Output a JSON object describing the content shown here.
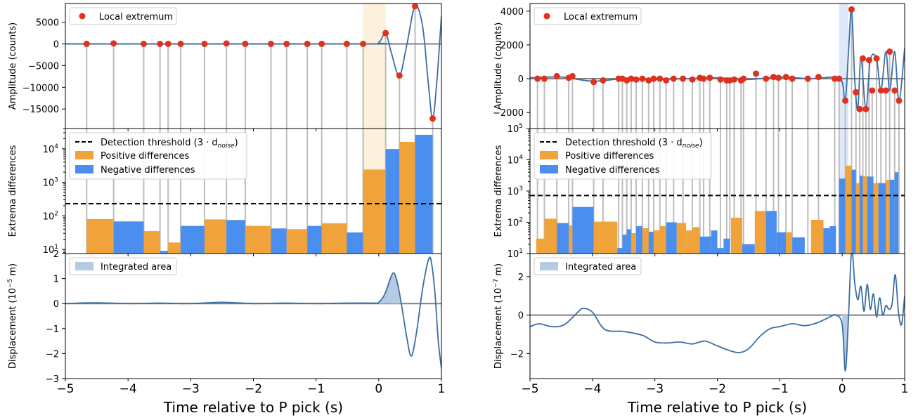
{
  "chart_data": [
    {
      "type": "line",
      "panel": "left-top",
      "ylabel": "Amplitude (counts)",
      "ylim": [
        -19500,
        9300
      ],
      "yticks": [
        "5000",
        "0",
        "−5000",
        "−10000",
        "−15000"
      ],
      "yticks_values": [
        5000,
        0,
        -5000,
        -10000,
        -15000
      ],
      "xlim": [
        -5,
        1
      ],
      "grid": false,
      "legend": {
        "position": "top-left",
        "items": [
          "Local extremum"
        ]
      },
      "highlight_window": [
        -0.25,
        0.11
      ],
      "series": [
        {
          "name": "Local extremum",
          "x": [
            -4.66,
            -4.23,
            -3.75,
            -3.49,
            -3.36,
            -3.16,
            -2.78,
            -2.43,
            -2.13,
            -1.72,
            -1.47,
            -1.14,
            -0.91,
            -0.51,
            -0.25,
            0.11,
            0.33,
            0.58,
            0.86
          ],
          "y": [
            0,
            100,
            0,
            0,
            0,
            0,
            0,
            100,
            0,
            0,
            0,
            0,
            0,
            0,
            0,
            2500,
            -7300,
            8700,
            -17200
          ]
        }
      ],
      "trace": {
        "x": [
          -5,
          -0.2,
          0.0,
          0.11,
          0.2,
          0.33,
          0.45,
          0.58,
          0.7,
          0.79,
          0.86,
          0.93,
          1.0
        ],
        "y": [
          0,
          0,
          300,
          2500,
          -2000,
          -7300,
          0,
          8700,
          4000,
          -9000,
          -17200,
          -8000,
          6500
        ]
      }
    },
    {
      "type": "bar",
      "panel": "left-middle",
      "ylabel": "Extrema differences",
      "scale": "log",
      "ylim": [
        7.5,
        40000
      ],
      "yticks": [
        "10",
        "10",
        "10",
        "10"
      ],
      "yticks_exponents": [
        "1",
        "2",
        "3",
        "4"
      ],
      "yticks_values": [
        10,
        100,
        1000,
        10000
      ],
      "threshold": 230,
      "legend": {
        "position": "top-left",
        "items": [
          "Detection threshold (3 · d",
          "noise",
          ")",
          "Positive differences",
          "Negative differences"
        ]
      },
      "bars": [
        {
          "x0": -4.66,
          "x1": -4.23,
          "value": 80,
          "sign": "positive"
        },
        {
          "x0": -4.23,
          "x1": -3.75,
          "value": 68,
          "sign": "negative"
        },
        {
          "x0": -3.75,
          "x1": -3.49,
          "value": 35,
          "sign": "positive"
        },
        {
          "x0": -3.49,
          "x1": -3.36,
          "value": 9,
          "sign": "negative"
        },
        {
          "x0": -3.36,
          "x1": -3.16,
          "value": 16,
          "sign": "positive"
        },
        {
          "x0": -3.16,
          "x1": -2.78,
          "value": 50,
          "sign": "negative"
        },
        {
          "x0": -2.78,
          "x1": -2.43,
          "value": 78,
          "sign": "positive"
        },
        {
          "x0": -2.43,
          "x1": -2.13,
          "value": 75,
          "sign": "negative"
        },
        {
          "x0": -2.13,
          "x1": -1.72,
          "value": 50,
          "sign": "positive"
        },
        {
          "x0": -1.72,
          "x1": -1.47,
          "value": 42,
          "sign": "negative"
        },
        {
          "x0": -1.47,
          "x1": -1.14,
          "value": 40,
          "sign": "positive"
        },
        {
          "x0": -1.14,
          "x1": -0.91,
          "value": 50,
          "sign": "negative"
        },
        {
          "x0": -0.91,
          "x1": -0.51,
          "value": 60,
          "sign": "positive"
        },
        {
          "x0": -0.51,
          "x1": -0.25,
          "value": 32,
          "sign": "negative"
        },
        {
          "x0": -0.25,
          "x1": 0.11,
          "value": 2400,
          "sign": "positive"
        },
        {
          "x0": 0.11,
          "x1": 0.33,
          "value": 9800,
          "sign": "negative"
        },
        {
          "x0": 0.33,
          "x1": 0.58,
          "value": 16000,
          "sign": "positive"
        },
        {
          "x0": 0.58,
          "x1": 0.86,
          "value": 26000,
          "sign": "negative"
        }
      ]
    },
    {
      "type": "area",
      "panel": "left-bottom",
      "ylabel": "Displacement (10",
      "ylabel_exp": "−5",
      "ylabel_unit": " m)",
      "ylim": [
        -3,
        2
      ],
      "yticks": [
        "2",
        "1",
        "0",
        "−1",
        "−2",
        "−3"
      ],
      "yticks_values": [
        2,
        1,
        0,
        -1,
        -2,
        -3
      ],
      "xlim": [
        -5,
        1
      ],
      "xticks": [
        "−5",
        "−4",
        "−3",
        "−2",
        "−1",
        "0",
        "1"
      ],
      "xticks_values": [
        -5,
        -4,
        -3,
        -2,
        -1,
        0,
        1
      ],
      "xlabel": "Time relative to P pick (s)",
      "legend": {
        "position": "top-left",
        "items": [
          "Integrated area"
        ]
      },
      "area_window": [
        0.0,
        0.36
      ],
      "x": [
        -5,
        -4.5,
        -4,
        -3.5,
        -3,
        -2.5,
        -2,
        -1.5,
        -1,
        -0.5,
        -0.1,
        0.0,
        0.1,
        0.2,
        0.25,
        0.3,
        0.36,
        0.45,
        0.52,
        0.6,
        0.7,
        0.8,
        0.85,
        0.9,
        0.95,
        1.0
      ],
      "y": [
        0.0,
        0.03,
        0.0,
        0.02,
        0.0,
        0.05,
        0.0,
        0.02,
        0.0,
        0.02,
        0.02,
        0.05,
        0.4,
        1.1,
        1.2,
        0.8,
        0.0,
        -1.4,
        -2.1,
        -1.2,
        0.6,
        1.8,
        1.5,
        0.3,
        -1.5,
        -2.6
      ]
    },
    {
      "type": "line",
      "panel": "right-top",
      "ylabel": "Amplitude (counts)",
      "ylim": [
        -2950,
        4450
      ],
      "yticks": [
        "4000",
        "2000",
        "0",
        "−2000"
      ],
      "yticks_values": [
        4000,
        2000,
        0,
        -2000
      ],
      "xlim": [
        -5,
        1
      ],
      "legend": {
        "position": "top-left",
        "items": [
          "Local extremum"
        ]
      },
      "highlight_window": [
        -0.05,
        0.1
      ],
      "series": [
        {
          "name": "Local extremum",
          "x": [
            -4.88,
            -4.77,
            -4.57,
            -4.38,
            -4.32,
            -3.98,
            -3.83,
            -3.58,
            -3.52,
            -3.45,
            -3.38,
            -3.3,
            -3.2,
            -3.1,
            -3.02,
            -2.92,
            -2.82,
            -2.7,
            -2.55,
            -2.4,
            -2.28,
            -2.22,
            -2.12,
            -1.95,
            -1.85,
            -1.8,
            -1.73,
            -1.62,
            -1.58,
            -1.38,
            -1.22,
            -1.1,
            -1.02,
            -0.9,
            -0.8,
            -0.55,
            -0.38,
            -0.12,
            -0.05,
            0.05,
            0.15,
            0.22,
            0.28,
            0.33,
            0.38,
            0.43,
            0.48,
            0.55,
            0.62,
            0.7,
            0.76,
            0.84,
            0.91
          ],
          "y": [
            0,
            0,
            150,
            50,
            150,
            -200,
            -100,
            0,
            0,
            -100,
            0,
            -50,
            0,
            -100,
            0,
            0,
            -100,
            0,
            0,
            -50,
            50,
            0,
            50,
            -50,
            -100,
            -100,
            -50,
            -100,
            0,
            300,
            0,
            100,
            50,
            100,
            0,
            0,
            100,
            0,
            0,
            -1300,
            4100,
            -800,
            -1800,
            1200,
            -1800,
            1100,
            -700,
            1200,
            -700,
            -700,
            1600,
            -700,
            -1300
          ]
        }
      ],
      "trace": {
        "x": [
          -5,
          -4.5,
          -4,
          -3.5,
          -3,
          -2.5,
          -2,
          -1.5,
          -1,
          -0.5,
          -0.1,
          0.0,
          0.05,
          0.1,
          0.15,
          0.2,
          0.25,
          0.3,
          0.38,
          0.45,
          0.55,
          0.62,
          0.7,
          0.76,
          0.84,
          0.91,
          1.0
        ],
        "y": [
          50,
          100,
          -150,
          0,
          -50,
          0,
          50,
          -50,
          100,
          0,
          100,
          -200,
          -1300,
          1500,
          4100,
          0,
          -1800,
          1200,
          -1800,
          1100,
          1200,
          -700,
          1600,
          -700,
          1600,
          -1300,
          1800
        ]
      }
    },
    {
      "type": "bar",
      "panel": "right-middle",
      "ylabel": "Extrema differences",
      "scale": "log",
      "ylim": [
        10,
        100000
      ],
      "yticks": [
        "10",
        "10",
        "10",
        "10",
        "10"
      ],
      "yticks_exponents": [
        "5",
        "4",
        "3",
        "2",
        "1"
      ],
      "yticks_values": [
        100000,
        10000,
        1000,
        100,
        10
      ],
      "threshold": 720,
      "legend": {
        "position": "top-left",
        "items": [
          "Detection threshold (3 · d",
          "noise",
          ")",
          "Positive differences",
          "Negative differences"
        ]
      },
      "bars": [
        {
          "x0": -4.9,
          "x1": -4.77,
          "value": 30,
          "sign": "positive"
        },
        {
          "x0": -4.77,
          "x1": -4.57,
          "value": 130,
          "sign": "positive"
        },
        {
          "x0": -4.57,
          "x1": -4.38,
          "value": 95,
          "sign": "negative"
        },
        {
          "x0": -4.38,
          "x1": -4.32,
          "value": 80,
          "sign": "positive"
        },
        {
          "x0": -4.32,
          "x1": -3.98,
          "value": 310,
          "sign": "negative"
        },
        {
          "x0": -3.98,
          "x1": -3.6,
          "value": 105,
          "sign": "positive"
        },
        {
          "x0": -3.6,
          "x1": -3.52,
          "value": 15,
          "sign": "negative"
        },
        {
          "x0": -3.52,
          "x1": -3.45,
          "value": 40,
          "sign": "negative"
        },
        {
          "x0": -3.45,
          "x1": -3.38,
          "value": 60,
          "sign": "negative"
        },
        {
          "x0": -3.38,
          "x1": -3.3,
          "value": 45,
          "sign": "positive"
        },
        {
          "x0": -3.3,
          "x1": -3.2,
          "value": 75,
          "sign": "negative"
        },
        {
          "x0": -3.2,
          "x1": -3.1,
          "value": 65,
          "sign": "positive"
        },
        {
          "x0": -3.1,
          "x1": -3.02,
          "value": 50,
          "sign": "negative"
        },
        {
          "x0": -3.02,
          "x1": -2.92,
          "value": 55,
          "sign": "positive"
        },
        {
          "x0": -2.92,
          "x1": -2.82,
          "value": 75,
          "sign": "positive"
        },
        {
          "x0": -2.82,
          "x1": -2.65,
          "value": 100,
          "sign": "negative"
        },
        {
          "x0": -2.65,
          "x1": -2.5,
          "value": 95,
          "sign": "positive"
        },
        {
          "x0": -2.5,
          "x1": -2.4,
          "value": 55,
          "sign": "positive"
        },
        {
          "x0": -2.4,
          "x1": -2.28,
          "value": 70,
          "sign": "positive"
        },
        {
          "x0": -2.28,
          "x1": -2.1,
          "value": 35,
          "sign": "negative"
        },
        {
          "x0": -2.1,
          "x1": -2.0,
          "value": 55,
          "sign": "negative"
        },
        {
          "x0": -2.0,
          "x1": -1.9,
          "value": 15,
          "sign": "negative"
        },
        {
          "x0": -1.9,
          "x1": -1.8,
          "value": 30,
          "sign": "negative"
        },
        {
          "x0": -1.78,
          "x1": -1.6,
          "value": 140,
          "sign": "positive"
        },
        {
          "x0": -1.6,
          "x1": -1.4,
          "value": 20,
          "sign": "negative"
        },
        {
          "x0": -1.4,
          "x1": -1.22,
          "value": 230,
          "sign": "positive"
        },
        {
          "x0": -1.22,
          "x1": -1.05,
          "value": 230,
          "sign": "negative"
        },
        {
          "x0": -1.05,
          "x1": -0.9,
          "value": 48,
          "sign": "negative"
        },
        {
          "x0": -0.9,
          "x1": -0.8,
          "value": 48,
          "sign": "positive"
        },
        {
          "x0": -0.8,
          "x1": -0.6,
          "value": 33,
          "sign": "negative"
        },
        {
          "x0": -0.5,
          "x1": -0.3,
          "value": 120,
          "sign": "positive"
        },
        {
          "x0": -0.3,
          "x1": -0.2,
          "value": 65,
          "sign": "negative"
        },
        {
          "x0": -0.2,
          "x1": -0.1,
          "value": 75,
          "sign": "negative"
        },
        {
          "x0": -0.05,
          "x1": 0.05,
          "value": 2500,
          "sign": "negative"
        },
        {
          "x0": 0.05,
          "x1": 0.15,
          "value": 6500,
          "sign": "positive"
        },
        {
          "x0": 0.15,
          "x1": 0.22,
          "value": 4800,
          "sign": "negative"
        },
        {
          "x0": 0.22,
          "x1": 0.28,
          "value": 1800,
          "sign": "positive"
        },
        {
          "x0": 0.28,
          "x1": 0.33,
          "value": 3100,
          "sign": "negative"
        },
        {
          "x0": 0.33,
          "x1": 0.4,
          "value": 3000,
          "sign": "positive"
        },
        {
          "x0": 0.4,
          "x1": 0.5,
          "value": 2900,
          "sign": "negative"
        },
        {
          "x0": 0.5,
          "x1": 0.58,
          "value": 1800,
          "sign": "positive"
        },
        {
          "x0": 0.58,
          "x1": 0.7,
          "value": 1800,
          "sign": "negative"
        },
        {
          "x0": 0.7,
          "x1": 0.76,
          "value": 2300,
          "sign": "positive"
        },
        {
          "x0": 0.76,
          "x1": 0.84,
          "value": 2300,
          "sign": "negative"
        },
        {
          "x0": 0.84,
          "x1": 0.9,
          "value": 4000,
          "sign": "negative"
        }
      ]
    },
    {
      "type": "area",
      "panel": "right-bottom",
      "ylabel": "Displacement (10",
      "ylabel_exp": "−7",
      "ylabel_unit": " m)",
      "ylim": [
        -3.3,
        3.2
      ],
      "yticks": [
        "2",
        "0",
        "−2"
      ],
      "yticks_values": [
        2,
        0,
        -2
      ],
      "xlim": [
        -5,
        1
      ],
      "xticks": [
        "−5",
        "−4",
        "−3",
        "−2",
        "−1",
        "0",
        "1"
      ],
      "xticks_values": [
        -5,
        -4,
        -3,
        -2,
        -1,
        0,
        1
      ],
      "xlabel": "Time relative to P pick (s)",
      "legend": {
        "position": "top-left",
        "items": [
          "Integrated area"
        ]
      },
      "area_window": [
        0.0,
        0.1
      ],
      "x": [
        -5,
        -4.85,
        -4.65,
        -4.45,
        -4.25,
        -4.15,
        -4.0,
        -3.8,
        -3.5,
        -3.2,
        -3.0,
        -2.8,
        -2.6,
        -2.4,
        -2.2,
        -2.0,
        -1.8,
        -1.65,
        -1.5,
        -1.3,
        -1.15,
        -1.0,
        -0.8,
        -0.6,
        -0.4,
        -0.2,
        -0.1,
        0.0,
        0.05,
        0.1,
        0.15,
        0.2,
        0.25,
        0.3,
        0.35,
        0.4,
        0.45,
        0.5,
        0.55,
        0.6,
        0.65,
        0.7,
        0.75,
        0.8,
        0.85,
        0.9,
        0.95,
        1.0
      ],
      "y": [
        -0.6,
        -0.45,
        -0.6,
        -0.5,
        0.1,
        0.35,
        0.15,
        -0.75,
        -0.85,
        -1.05,
        -1.4,
        -1.45,
        -1.4,
        -1.5,
        -1.35,
        -1.6,
        -1.85,
        -1.95,
        -1.75,
        -1.05,
        -0.7,
        -0.6,
        -0.45,
        -0.55,
        -0.4,
        -0.1,
        0.0,
        -0.5,
        -2.9,
        -0.2,
        3.4,
        1.7,
        0.8,
        1.5,
        0.2,
        1.6,
        0.3,
        1.1,
        -0.1,
        0.9,
        0.0,
        0.5,
        0.3,
        0.6,
        2.1,
        0.2,
        -0.5,
        1.0
      ]
    }
  ]
}
